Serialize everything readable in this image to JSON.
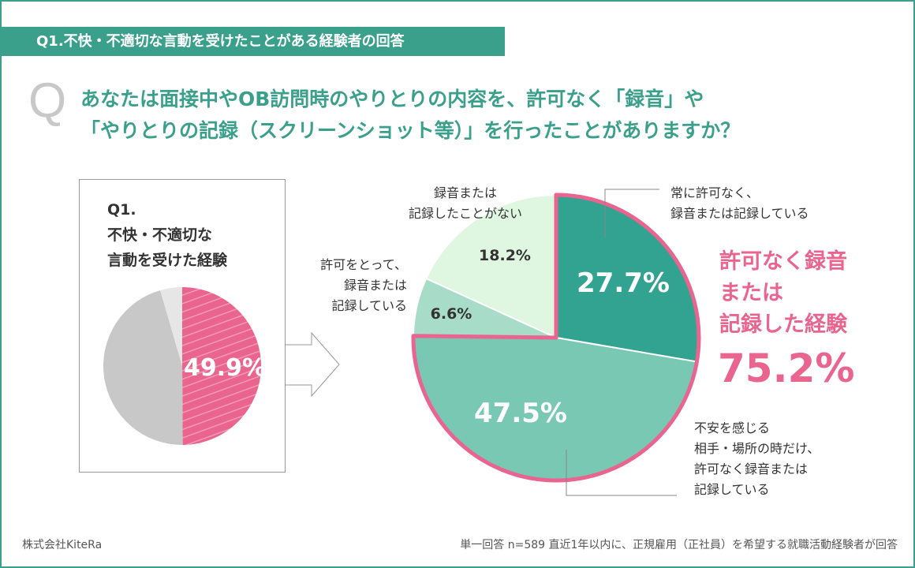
{
  "header": {
    "title": "Q1.不快・不適切な言動を受けたことがある経験者の回答"
  },
  "question": {
    "mark": "Q",
    "line1": "あなたは面接中やOB訪問時のやりとりの内容を、許可なく「録音」や",
    "line2": "「やりとりの記録（スクリーンショット等）」を行ったことがありますか？"
  },
  "colors": {
    "teal_dark": "#33a391",
    "teal_mid": "#79c8b3",
    "teal_light": "#a7dcc8",
    "teal_pale": "#dff6e0",
    "pink": "#e9648f",
    "grey": "#c8c8c8",
    "grey_light": "#e6e6e6"
  },
  "chart_data": [
    {
      "type": "pie",
      "title": "Q1.\n不快・不適切な\n言動を受けた経験",
      "title_lines": [
        "Q1.",
        "不快・不適切な",
        "言動を受けた経験"
      ],
      "slices": [
        {
          "value": 49.9,
          "label": "49.9%",
          "color": "#e9648f",
          "pattern": "stripes"
        },
        {
          "value": 45.6,
          "color": "#c8c8c8"
        },
        {
          "value": 4.5,
          "color": "#e6e6e6"
        }
      ]
    },
    {
      "type": "pie",
      "slices": [
        {
          "value": 27.7,
          "label": "27.7%",
          "name": "常に許可なく、\n録音または記録している",
          "name_lines": [
            "常に許可なく、",
            "録音または記録している"
          ],
          "color": "#33a391"
        },
        {
          "value": 47.5,
          "label": "47.5%",
          "name_lines": [
            "不安を感じる",
            "相手・場所の時だけ、",
            "許可なく録音または",
            "記録している"
          ],
          "color": "#79c8b3"
        },
        {
          "value": 6.6,
          "label": "6.6%",
          "name_lines": [
            "許可をとって、",
            "録音または",
            "記録している"
          ],
          "color": "#a7dcc8"
        },
        {
          "value": 18.2,
          "label": "18.2%",
          "name_lines": [
            "録音または",
            "記録したことがない"
          ],
          "color": "#dff6e0"
        }
      ],
      "highlight": {
        "lines": [
          "許可なく録音",
          "または",
          "記録した経験"
        ],
        "value": "75.2%"
      }
    }
  ],
  "footer": {
    "company": "株式会社KiteRa",
    "note": "単一回答 n=589 直近1年以内に、正規雇用（正社員）を希望する就職活動経験者が回答"
  }
}
